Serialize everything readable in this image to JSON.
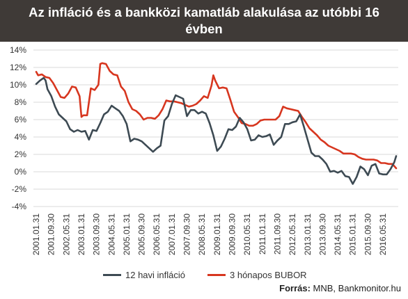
{
  "title": "Az infláció és a bankközi kamatláb alakulása az utóbbi 16 évben",
  "source_label": "Forrás:",
  "source_text": "MNB, Bankmonitor.hu",
  "colors": {
    "inflation": "#3d4a53",
    "bubor": "#d7361f",
    "header_bg": "#3f3a37",
    "grid": "#d9d9d9"
  },
  "chart_data": {
    "type": "line",
    "xlabel": "",
    "ylabel": "",
    "ylim": [
      -4,
      14
    ],
    "y_ticks": [
      "-4%",
      "-2%",
      "0%",
      "2%",
      "4%",
      "6%",
      "8%",
      "10%",
      "12%",
      "14%"
    ],
    "x_range": [
      "2001-01-31",
      "2016-12-31"
    ],
    "x_tick_labels": [
      "2001.01.31",
      "2001.09.30",
      "2002.05.31",
      "2003.01.31",
      "2003.09.30",
      "2004.05.31",
      "2005.01.31",
      "2005.09.30",
      "2006.05.31",
      "2007.01.31",
      "2007.09.30",
      "2008.05.31",
      "2009.01.31",
      "2009.09.30",
      "2010.05.31",
      "2011.01.31",
      "2011.09.30",
      "2012.05.31",
      "2013.01.31",
      "2013.09.30",
      "2014.05.31",
      "2015.01.31",
      "2015.09.30",
      "2016.05.31"
    ],
    "grid": true,
    "legend_position": "bottom",
    "series": [
      {
        "name": "12 havi infláció",
        "points": [
          [
            "2001-01",
            10.1
          ],
          [
            "2001-03",
            10.5
          ],
          [
            "2001-05",
            10.8
          ],
          [
            "2001-06",
            10.5
          ],
          [
            "2001-07",
            9.5
          ],
          [
            "2001-09",
            8.7
          ],
          [
            "2001-11",
            7.5
          ],
          [
            "2002-01",
            6.6
          ],
          [
            "2002-03",
            6.2
          ],
          [
            "2002-05",
            5.8
          ],
          [
            "2002-07",
            4.9
          ],
          [
            "2002-09",
            4.6
          ],
          [
            "2002-11",
            4.8
          ],
          [
            "2003-01",
            4.6
          ],
          [
            "2003-03",
            4.7
          ],
          [
            "2003-05",
            3.7
          ],
          [
            "2003-07",
            4.8
          ],
          [
            "2003-09",
            4.7
          ],
          [
            "2003-11",
            5.6
          ],
          [
            "2004-01",
            6.6
          ],
          [
            "2004-03",
            6.9
          ],
          [
            "2004-05",
            7.6
          ],
          [
            "2004-07",
            7.3
          ],
          [
            "2004-09",
            7.0
          ],
          [
            "2004-11",
            6.4
          ],
          [
            "2005-01",
            5.5
          ],
          [
            "2005-03",
            3.5
          ],
          [
            "2005-05",
            3.8
          ],
          [
            "2005-07",
            3.7
          ],
          [
            "2005-09",
            3.5
          ],
          [
            "2005-11",
            3.1
          ],
          [
            "2006-01",
            2.7
          ],
          [
            "2006-03",
            2.3
          ],
          [
            "2006-05",
            2.7
          ],
          [
            "2006-07",
            3.0
          ],
          [
            "2006-09",
            5.9
          ],
          [
            "2006-11",
            6.4
          ],
          [
            "2007-01",
            7.8
          ],
          [
            "2007-03",
            8.8
          ],
          [
            "2007-05",
            8.6
          ],
          [
            "2007-07",
            8.4
          ],
          [
            "2007-09",
            6.4
          ],
          [
            "2007-11",
            7.1
          ],
          [
            "2008-01",
            7.1
          ],
          [
            "2008-03",
            6.7
          ],
          [
            "2008-05",
            6.9
          ],
          [
            "2008-07",
            6.7
          ],
          [
            "2008-09",
            5.6
          ],
          [
            "2008-11",
            4.2
          ],
          [
            "2009-01",
            2.4
          ],
          [
            "2009-03",
            2.9
          ],
          [
            "2009-05",
            3.8
          ],
          [
            "2009-07",
            4.9
          ],
          [
            "2009-09",
            4.8
          ],
          [
            "2009-11",
            5.2
          ],
          [
            "2010-01",
            6.2
          ],
          [
            "2010-03",
            5.7
          ],
          [
            "2010-05",
            4.9
          ],
          [
            "2010-07",
            3.6
          ],
          [
            "2010-09",
            3.7
          ],
          [
            "2010-11",
            4.2
          ],
          [
            "2011-01",
            4.0
          ],
          [
            "2011-03",
            4.1
          ],
          [
            "2011-05",
            4.3
          ],
          [
            "2011-07",
            3.1
          ],
          [
            "2011-09",
            3.6
          ],
          [
            "2011-11",
            4.0
          ],
          [
            "2012-01",
            5.5
          ],
          [
            "2012-03",
            5.5
          ],
          [
            "2012-05",
            5.7
          ],
          [
            "2012-07",
            5.8
          ],
          [
            "2012-09",
            6.6
          ],
          [
            "2012-11",
            5.2
          ],
          [
            "2013-01",
            3.7
          ],
          [
            "2013-03",
            2.2
          ],
          [
            "2013-05",
            1.8
          ],
          [
            "2013-07",
            1.8
          ],
          [
            "2013-09",
            1.4
          ],
          [
            "2013-11",
            0.9
          ],
          [
            "2014-01",
            0.0
          ],
          [
            "2014-03",
            0.1
          ],
          [
            "2014-05",
            -0.1
          ],
          [
            "2014-07",
            0.1
          ],
          [
            "2014-09",
            -0.5
          ],
          [
            "2014-11",
            -0.6
          ],
          [
            "2015-01",
            -1.4
          ],
          [
            "2015-03",
            -0.6
          ],
          [
            "2015-05",
            0.6
          ],
          [
            "2015-07",
            0.3
          ],
          [
            "2015-09",
            -0.4
          ],
          [
            "2015-11",
            0.7
          ],
          [
            "2016-01",
            0.9
          ],
          [
            "2016-03",
            -0.2
          ],
          [
            "2016-05",
            -0.3
          ],
          [
            "2016-07",
            -0.3
          ],
          [
            "2016-09",
            0.3
          ],
          [
            "2016-11",
            1.1
          ],
          [
            "2016-12",
            1.8
          ]
        ]
      },
      {
        "name": "3 hónapos BUBOR",
        "points": [
          [
            "2001-01",
            11.5
          ],
          [
            "2001-02",
            11.1
          ],
          [
            "2001-04",
            11.2
          ],
          [
            "2001-06",
            10.9
          ],
          [
            "2001-08",
            10.8
          ],
          [
            "2001-10",
            10.2
          ],
          [
            "2001-12",
            9.4
          ],
          [
            "2002-02",
            8.6
          ],
          [
            "2002-04",
            8.5
          ],
          [
            "2002-06",
            9.0
          ],
          [
            "2002-08",
            9.8
          ],
          [
            "2002-10",
            9.7
          ],
          [
            "2002-12",
            8.7
          ],
          [
            "2003-01",
            6.3
          ],
          [
            "2003-02",
            6.5
          ],
          [
            "2003-04",
            6.5
          ],
          [
            "2003-06",
            9.6
          ],
          [
            "2003-08",
            9.4
          ],
          [
            "2003-10",
            10.0
          ],
          [
            "2003-11",
            12.4
          ],
          [
            "2003-12",
            12.5
          ],
          [
            "2004-02",
            12.4
          ],
          [
            "2004-04",
            11.6
          ],
          [
            "2004-06",
            11.2
          ],
          [
            "2004-08",
            11.1
          ],
          [
            "2004-10",
            9.8
          ],
          [
            "2004-12",
            9.3
          ],
          [
            "2005-02",
            8.0
          ],
          [
            "2005-04",
            7.2
          ],
          [
            "2005-06",
            7.0
          ],
          [
            "2005-08",
            6.6
          ],
          [
            "2005-10",
            6.0
          ],
          [
            "2005-12",
            6.2
          ],
          [
            "2006-02",
            6.2
          ],
          [
            "2006-04",
            6.1
          ],
          [
            "2006-06",
            6.5
          ],
          [
            "2006-08",
            7.2
          ],
          [
            "2006-10",
            8.2
          ],
          [
            "2006-12",
            8.1
          ],
          [
            "2007-02",
            8.1
          ],
          [
            "2007-04",
            8.0
          ],
          [
            "2007-06",
            7.9
          ],
          [
            "2007-08",
            7.7
          ],
          [
            "2007-10",
            7.5
          ],
          [
            "2007-12",
            7.6
          ],
          [
            "2008-02",
            7.8
          ],
          [
            "2008-04",
            8.2
          ],
          [
            "2008-06",
            8.7
          ],
          [
            "2008-08",
            8.5
          ],
          [
            "2008-10",
            9.9
          ],
          [
            "2008-11",
            11.1
          ],
          [
            "2008-12",
            10.5
          ],
          [
            "2009-02",
            9.6
          ],
          [
            "2009-04",
            9.7
          ],
          [
            "2009-06",
            9.6
          ],
          [
            "2009-08",
            8.3
          ],
          [
            "2009-10",
            6.9
          ],
          [
            "2009-12",
            6.3
          ],
          [
            "2010-02",
            5.6
          ],
          [
            "2010-04",
            5.5
          ],
          [
            "2010-06",
            5.3
          ],
          [
            "2010-08",
            5.3
          ],
          [
            "2010-10",
            5.5
          ],
          [
            "2010-12",
            5.9
          ],
          [
            "2011-02",
            6.0
          ],
          [
            "2011-04",
            6.0
          ],
          [
            "2011-06",
            6.0
          ],
          [
            "2011-08",
            6.0
          ],
          [
            "2011-10",
            6.4
          ],
          [
            "2011-12",
            7.5
          ],
          [
            "2012-02",
            7.3
          ],
          [
            "2012-04",
            7.2
          ],
          [
            "2012-06",
            7.1
          ],
          [
            "2012-08",
            7.0
          ],
          [
            "2012-10",
            6.3
          ],
          [
            "2012-12",
            5.7
          ],
          [
            "2013-02",
            5.0
          ],
          [
            "2013-04",
            4.6
          ],
          [
            "2013-06",
            4.2
          ],
          [
            "2013-08",
            3.7
          ],
          [
            "2013-10",
            3.4
          ],
          [
            "2013-12",
            3.0
          ],
          [
            "2014-02",
            2.8
          ],
          [
            "2014-04",
            2.6
          ],
          [
            "2014-06",
            2.4
          ],
          [
            "2014-08",
            2.1
          ],
          [
            "2014-10",
            2.1
          ],
          [
            "2014-12",
            2.1
          ],
          [
            "2015-02",
            2.0
          ],
          [
            "2015-04",
            1.7
          ],
          [
            "2015-06",
            1.5
          ],
          [
            "2015-08",
            1.4
          ],
          [
            "2015-10",
            1.4
          ],
          [
            "2015-12",
            1.4
          ],
          [
            "2016-02",
            1.3
          ],
          [
            "2016-04",
            1.0
          ],
          [
            "2016-06",
            1.0
          ],
          [
            "2016-08",
            0.9
          ],
          [
            "2016-10",
            0.9
          ],
          [
            "2016-12",
            0.4
          ]
        ]
      }
    ]
  }
}
